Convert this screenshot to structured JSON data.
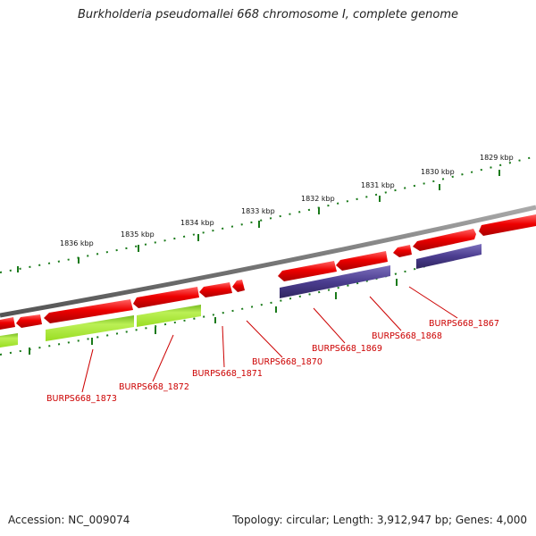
{
  "title": "Burkholderia pseudomallei 668 chromosome I, complete genome",
  "footer": {
    "accession": "Accession: NC_009074",
    "summary": "Topology: circular; Length: 3,912,947 bp; Genes: 4,000"
  },
  "colors": {
    "backbone": "#808080",
    "forward_gene": "#ee0000",
    "reverse_gene": "#4b3d8f",
    "other_feature": "#aaee33",
    "tick": "#1a7a1a",
    "label": "#cc0000"
  },
  "scale_labels": [
    "1829 kbp",
    "1830 kbp",
    "1831 kbp",
    "1832 kbp",
    "1833 kbp",
    "1834 kbp",
    "1835 kbp",
    "1836 kbp"
  ],
  "gene_labels": [
    "BURPS668_1867",
    "BURPS668_1868",
    "BURPS668_1869",
    "BURPS668_1870",
    "BURPS668_1871",
    "BURPS668_1872",
    "BURPS668_1873"
  ]
}
